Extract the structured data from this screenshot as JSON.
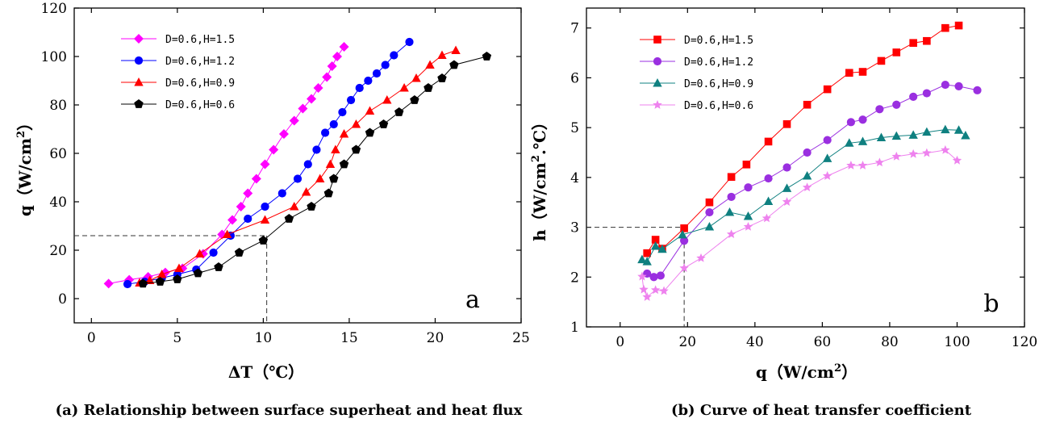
{
  "chart_data": [
    {
      "type": "line",
      "panel_letter": "a",
      "caption": "(a) Relationship between surface superheat and heat flux",
      "xlabel": "ΔT（℃）",
      "ylabel_main": "q（W/cm",
      "ylabel_sup": "2",
      "ylabel_end": "）",
      "xlim": [
        -1,
        25
      ],
      "ylim": [
        -10,
        120
      ],
      "xticks": [
        0,
        5,
        10,
        15,
        20,
        25
      ],
      "yticks": [
        0,
        20,
        40,
        60,
        80,
        100,
        120
      ],
      "legend_position": "top-left",
      "reference_point": {
        "x": 10.2,
        "y": 26
      },
      "series": [
        {
          "name": "D=0.6,H=1.5",
          "color": "#ff00ff",
          "marker": "diamond",
          "x": [
            1.0,
            2.2,
            3.3,
            4.3,
            5.3,
            6.5,
            7.6,
            8.2,
            8.7,
            9.1,
            9.6,
            10.1,
            10.6,
            11.2,
            11.8,
            12.3,
            12.8,
            13.2,
            13.7,
            14.0,
            14.3,
            14.7
          ],
          "y": [
            6.2,
            7.8,
            9.0,
            10.8,
            12.5,
            18.5,
            26.5,
            32.5,
            38.0,
            43.5,
            49.5,
            55.5,
            61.5,
            68.0,
            73.5,
            78.5,
            82.5,
            87.0,
            91.5,
            96.0,
            100.0,
            104.0
          ]
        },
        {
          "name": "D=0.6,H=1.2",
          "color": "#0000ff",
          "marker": "circle",
          "x": [
            2.1,
            3.1,
            4.1,
            5.0,
            6.1,
            7.1,
            8.1,
            9.1,
            10.1,
            11.1,
            12.0,
            12.6,
            13.1,
            13.6,
            14.1,
            14.6,
            15.1,
            15.6,
            16.1,
            16.6,
            17.1,
            17.6,
            18.5
          ],
          "y": [
            6.0,
            7.0,
            8.5,
            10.0,
            12.0,
            19.0,
            26.0,
            33.0,
            38.0,
            43.5,
            49.5,
            55.5,
            61.5,
            68.5,
            72.0,
            77.0,
            82.0,
            87.0,
            90.0,
            93.0,
            96.5,
            100.5,
            106.0
          ]
        },
        {
          "name": "D=0.6,H=0.9",
          "color": "#ff0000",
          "marker": "triangle",
          "x": [
            2.8,
            3.4,
            4.1,
            5.1,
            6.3,
            7.9,
            10.1,
            11.8,
            12.5,
            13.3,
            13.9,
            14.2,
            14.7,
            15.4,
            16.2,
            17.2,
            18.2,
            18.9,
            19.7,
            20.4,
            21.2
          ],
          "y": [
            6.5,
            7.5,
            10.0,
            12.5,
            18.5,
            26.5,
            32.5,
            38.0,
            44.0,
            49.5,
            55.5,
            61.5,
            68.0,
            72.0,
            77.5,
            82.0,
            87.0,
            91.0,
            96.5,
            100.5,
            102.5
          ]
        },
        {
          "name": "D=0.6,H=0.6",
          "color": "#000000",
          "marker": "pentagon",
          "x": [
            3.0,
            4.0,
            5.0,
            6.2,
            7.4,
            8.6,
            10.0,
            11.5,
            12.8,
            13.8,
            14.1,
            14.7,
            15.4,
            16.2,
            17.0,
            17.9,
            18.8,
            19.6,
            20.4,
            21.1,
            23.0
          ],
          "y": [
            6.2,
            7.0,
            8.0,
            10.5,
            13.0,
            19.0,
            24.0,
            33.0,
            38.0,
            43.5,
            49.5,
            55.5,
            61.5,
            68.5,
            72.0,
            77.0,
            82.0,
            87.0,
            91.0,
            96.5,
            100.0
          ]
        }
      ]
    },
    {
      "type": "line",
      "panel_letter": "b",
      "caption": "(b) Curve of heat transfer coefficient",
      "xlabel_main": "q（W/cm",
      "xlabel_sup": "2",
      "xlabel_end": "）",
      "ylabel_main": "h（W/cm",
      "ylabel_sup": "2",
      "ylabel_end": ".℃）",
      "xlim": [
        -10,
        120
      ],
      "ylim": [
        1,
        7.4
      ],
      "xticks": [
        0,
        20,
        40,
        60,
        80,
        100,
        120
      ],
      "yticks": [
        1,
        2,
        3,
        4,
        5,
        6,
        7
      ],
      "legend_position": "top-left",
      "reference_point": {
        "x": 19,
        "y": 3
      },
      "series": [
        {
          "name": "D=0.6,H=1.5",
          "color": "#ff0000",
          "marker": "square",
          "x": [
            8.0,
            10.5,
            12.5,
            19.0,
            26.5,
            33.0,
            37.5,
            44.0,
            49.5,
            55.5,
            61.5,
            68.0,
            72.0,
            77.5,
            82.0,
            87.0,
            91.0,
            96.5,
            100.5
          ],
          "y": [
            2.48,
            2.75,
            2.57,
            2.98,
            3.5,
            4.01,
            4.26,
            4.72,
            5.07,
            5.46,
            5.77,
            6.1,
            6.12,
            6.34,
            6.51,
            6.7,
            6.74,
            7.0,
            7.05
          ]
        },
        {
          "name": "D=0.6,H=1.2",
          "color": "#9a2fe0",
          "marker": "circle",
          "x": [
            8.0,
            10.0,
            12.0,
            19.0,
            26.5,
            33.0,
            38.0,
            44.0,
            49.5,
            55.5,
            61.5,
            68.5,
            72.0,
            77.0,
            82.0,
            87.0,
            91.0,
            96.5,
            100.5,
            106.0
          ],
          "y": [
            2.07,
            2.0,
            2.03,
            2.73,
            3.3,
            3.61,
            3.8,
            3.98,
            4.2,
            4.5,
            4.75,
            5.11,
            5.16,
            5.37,
            5.46,
            5.62,
            5.69,
            5.86,
            5.83,
            5.75
          ]
        },
        {
          "name": "D=0.6,H=0.9",
          "color": "#0f8080",
          "marker": "triangle",
          "x": [
            6.5,
            8.0,
            10.5,
            12.5,
            18.5,
            26.5,
            32.5,
            38.0,
            44.0,
            49.5,
            55.5,
            61.5,
            68.0,
            72.0,
            77.5,
            82.0,
            87.0,
            91.0,
            96.5,
            100.5,
            102.5
          ],
          "y": [
            2.35,
            2.31,
            2.62,
            2.56,
            2.85,
            3.01,
            3.3,
            3.22,
            3.52,
            3.78,
            4.03,
            4.38,
            4.69,
            4.72,
            4.8,
            4.83,
            4.85,
            4.91,
            4.96,
            4.95,
            4.84
          ]
        },
        {
          "name": "D=0.6,H=0.6",
          "color": "#ee82ee",
          "marker": "star",
          "x": [
            6.5,
            7.0,
            8.0,
            10.5,
            13.0,
            19.0,
            24.0,
            33.0,
            38.0,
            43.5,
            49.5,
            55.5,
            61.5,
            68.5,
            72.0,
            77.0,
            82.0,
            87.0,
            91.0,
            96.5,
            100.0
          ],
          "y": [
            2.01,
            1.75,
            1.6,
            1.74,
            1.72,
            2.18,
            2.38,
            2.86,
            3.01,
            3.18,
            3.51,
            3.8,
            4.03,
            4.24,
            4.24,
            4.3,
            4.42,
            4.47,
            4.49,
            4.55,
            4.34
          ]
        }
      ]
    }
  ]
}
